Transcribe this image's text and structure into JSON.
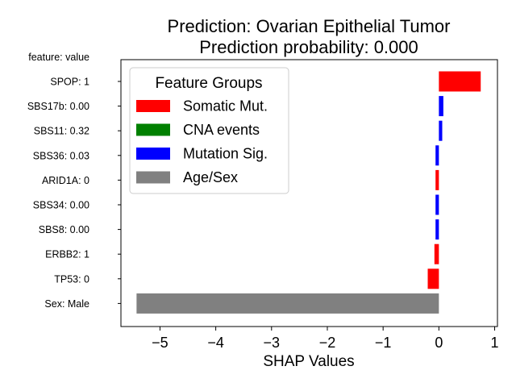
{
  "chart_data": {
    "type": "bar",
    "orientation": "horizontal",
    "title_line1": "Prediction: Ovarian Epithelial Tumor",
    "title_line2": "Prediction probability: 0.000",
    "xlabel": "SHAP Values",
    "ylabel_header": "feature: value",
    "xlim": [
      -5.7,
      1.05
    ],
    "xticks": [
      -5,
      -4,
      -3,
      -2,
      -1,
      0,
      1
    ],
    "xtick_labels": [
      "−5",
      "−4",
      "−3",
      "−2",
      "−1",
      "0",
      "1"
    ],
    "categories": [
      "SPOP: 1",
      "SBS17b: 0.00",
      "SBS11: 0.32",
      "SBS36: 0.03",
      "ARID1A: 0",
      "SBS34: 0.00",
      "SBS8: 0.00",
      "ERBB2: 1",
      "TP53: 0",
      "Sex: Male"
    ],
    "values": [
      0.75,
      0.08,
      0.06,
      -0.06,
      -0.06,
      -0.06,
      -0.06,
      -0.08,
      -0.2,
      -5.42
    ],
    "groups": [
      "Somatic Mut.",
      "Mutation Sig.",
      "Mutation Sig.",
      "Mutation Sig.",
      "Somatic Mut.",
      "Mutation Sig.",
      "Mutation Sig.",
      "Somatic Mut.",
      "Somatic Mut.",
      "Age/Sex"
    ],
    "legend": {
      "title": "Feature Groups",
      "position": "upper-left",
      "entries": [
        {
          "name": "Somatic Mut.",
          "color": "#ff0000"
        },
        {
          "name": "CNA events",
          "color": "#008000"
        },
        {
          "name": "Mutation Sig.",
          "color": "#0000ff"
        },
        {
          "name": "Age/Sex",
          "color": "#808080"
        }
      ]
    },
    "grid": false
  }
}
